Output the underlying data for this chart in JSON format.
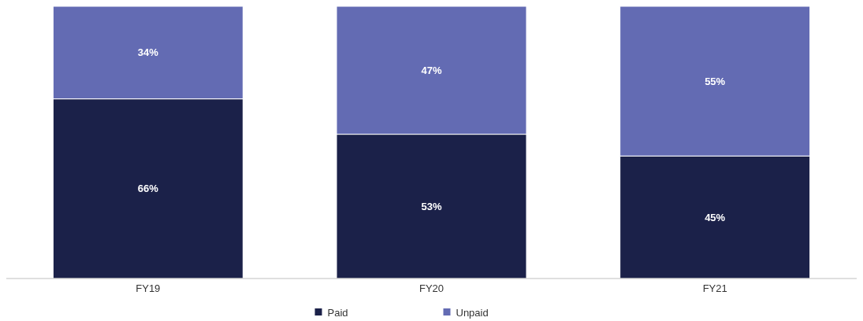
{
  "chart_data": {
    "type": "bar",
    "stacked": true,
    "categories": [
      "FY19",
      "FY20",
      "FY21"
    ],
    "series": [
      {
        "name": "Paid",
        "color": "#1b2149",
        "values": [
          66,
          53,
          45
        ],
        "value_labels": [
          "66%",
          "53%",
          "45%"
        ]
      },
      {
        "name": "Unpaid",
        "color": "#636bb3",
        "values": [
          34,
          47,
          55
        ],
        "value_labels": [
          "34%",
          "47%",
          "55%"
        ]
      }
    ],
    "legend": "bottom",
    "grid": false
  }
}
